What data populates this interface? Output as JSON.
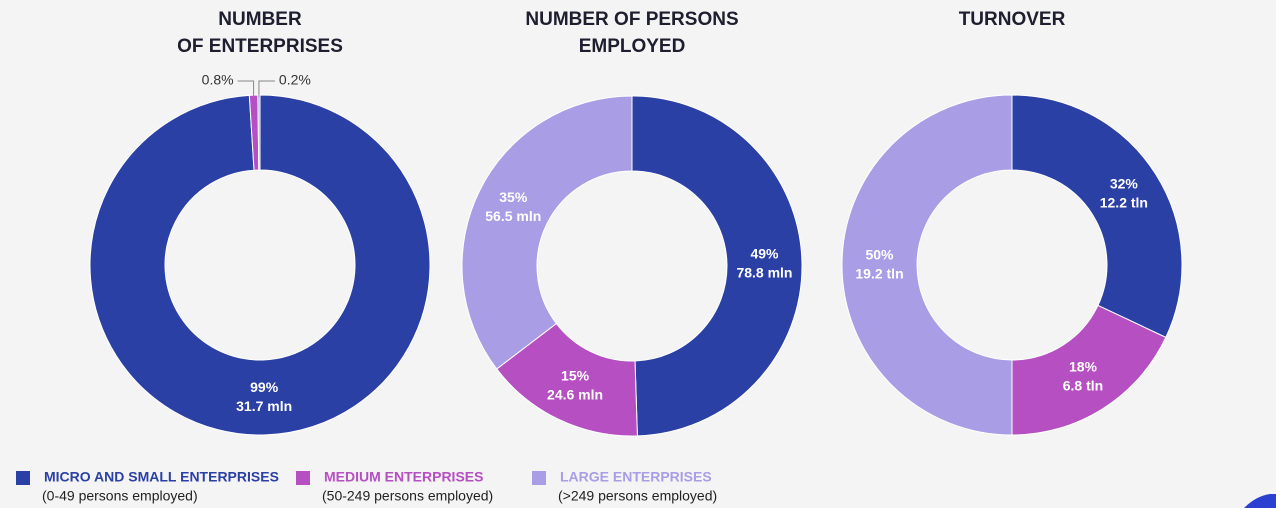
{
  "chart_data": [
    {
      "type": "pie",
      "title": [
        "NUMBER",
        "OF ENTERPRISES"
      ],
      "values": [
        99,
        0.8,
        0.2
      ],
      "value_labels": [
        "99%",
        "0.8%",
        "0.2%"
      ],
      "amounts": [
        "31.7 mln",
        null,
        null
      ]
    },
    {
      "type": "pie",
      "title": [
        "NUMBER OF PERSONS",
        "EMPLOYED"
      ],
      "values": [
        49,
        15,
        35
      ],
      "value_labels": [
        "49%",
        "15%",
        "35%"
      ],
      "amounts": [
        "78.8 mln",
        "24.6 mln",
        "56.5 mln"
      ]
    },
    {
      "type": "pie",
      "title": [
        "TURNOVER"
      ],
      "values": [
        32,
        18,
        50
      ],
      "value_labels": [
        "32%",
        "18%",
        "50%"
      ],
      "amounts": [
        "12.2 tln",
        "6.8 tln",
        "19.2 tln"
      ]
    }
  ],
  "legend": {
    "categories": [
      "MICRO AND SMALL ENTERPRISES",
      "MEDIUM ENTERPRISES",
      "LARGE ENTERPRISES"
    ],
    "notes": [
      "(0-49 persons employed)",
      "(50-249 persons employed)",
      "(>249 persons employed)"
    ],
    "colors": [
      "#2b40a5",
      "#b54fc2",
      "#a99de6"
    ]
  }
}
